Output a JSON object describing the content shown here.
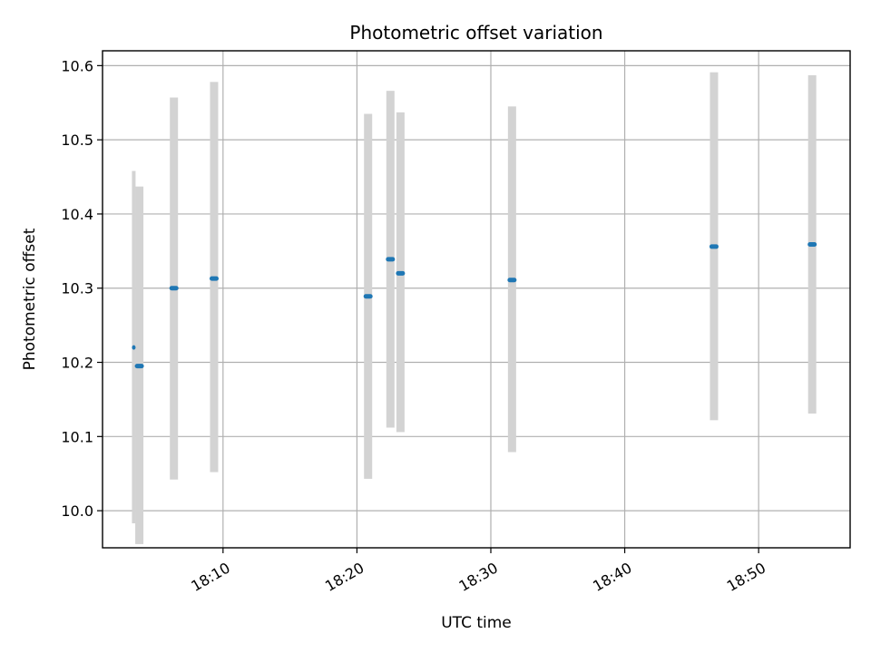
{
  "chart_data": {
    "type": "scatter",
    "title": "Photometric offset variation",
    "xlabel": "UTC time",
    "ylabel": "Photometric offset",
    "xlim": [
      "18:01:00",
      "18:56:50"
    ],
    "ylim": [
      9.95,
      10.62
    ],
    "xticks": [
      "18:10",
      "18:20",
      "18:30",
      "18:40",
      "18:50"
    ],
    "yticks": [
      10.0,
      10.1,
      10.2,
      10.3,
      10.4,
      10.5,
      10.6
    ],
    "ytick_labels": [
      "10.0",
      "10.1",
      "10.2",
      "10.3",
      "10.4",
      "10.5",
      "10.6"
    ],
    "grid": true,
    "errorbar_color": "#d3d3d3",
    "point_color": "#1f77b4",
    "points": [
      {
        "t": "18:03:20",
        "y": 10.22,
        "low": 9.983,
        "high": 10.458
      },
      {
        "t": "18:03:45",
        "y": 10.195,
        "low": 9.955,
        "high": 10.437
      },
      {
        "t": "18:06:20",
        "y": 10.3,
        "low": 10.042,
        "high": 10.557
      },
      {
        "t": "18:09:20",
        "y": 10.313,
        "low": 10.052,
        "high": 10.578
      },
      {
        "t": "18:20:50",
        "y": 10.289,
        "low": 10.043,
        "high": 10.535
      },
      {
        "t": "18:22:30",
        "y": 10.339,
        "low": 10.112,
        "high": 10.566
      },
      {
        "t": "18:23:15",
        "y": 10.32,
        "low": 10.106,
        "high": 10.537
      },
      {
        "t": "18:31:35",
        "y": 10.311,
        "low": 10.079,
        "high": 10.545
      },
      {
        "t": "18:46:40",
        "y": 10.356,
        "low": 10.122,
        "high": 10.591
      },
      {
        "t": "18:54:00",
        "y": 10.359,
        "low": 10.131,
        "high": 10.587
      }
    ]
  }
}
